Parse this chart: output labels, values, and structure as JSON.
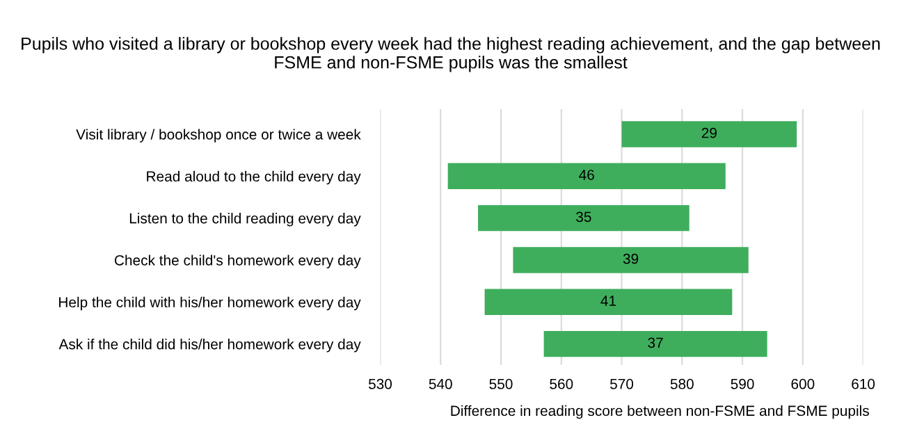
{
  "chart_data": {
    "type": "bar",
    "orientation": "horizontal",
    "title": "Pupils who visited a library or bookshop every week had the highest reading achievement, and the gap between FSME and non-FSME pupils was the smallest",
    "xlabel": "Difference in reading score between non-FSME and FSME pupils",
    "categories": [
      "Visit library / bookshop once or twice a week",
      "Read aloud to the child every day",
      "Listen to the child reading every day",
      "Check the child's homework every day",
      "Help the child with his/her homework every day",
      "Ask if the child did his/her homework every day"
    ],
    "base": [
      570,
      541.2,
      546.2,
      552,
      547.3,
      557.1
    ],
    "values": [
      29,
      46,
      35,
      39,
      41,
      37
    ],
    "color": "#3fae5c",
    "data_labels": true,
    "xlim": [
      530,
      610
    ],
    "xticks": [
      530,
      540,
      550,
      560,
      570,
      580,
      590,
      600,
      610
    ],
    "grid": "x",
    "legend": false
  }
}
